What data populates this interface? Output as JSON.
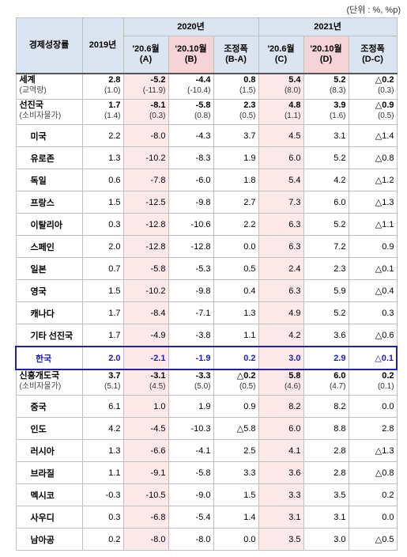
{
  "unit_note": "(단위 : %, %p)",
  "header": {
    "stub": "경제성장률",
    "y2019": "2019년",
    "y2020": "2020년",
    "y2021": "2021년",
    "c_a": [
      "'20.6월",
      "(A)"
    ],
    "c_b": [
      "'20.10월",
      "(B)"
    ],
    "c_ba": [
      "조정폭",
      "(B-A)"
    ],
    "c_c": [
      "'20.6월",
      "(C)"
    ],
    "c_d": [
      "'20.10월",
      "(D)"
    ],
    "c_dc": [
      "조정폭",
      "(D-C)"
    ]
  },
  "groups": [
    {
      "name": "세계",
      "sub": "(교역량)",
      "v": [
        "2.8",
        "-5.2",
        "-4.4",
        "0.8",
        "5.4",
        "5.2",
        "△0.2"
      ],
      "s": [
        "(1.0)",
        "(-11.9)",
        "(-10.4)",
        "(1.5)",
        "(8.0)",
        "(8.3)",
        "(0.3)"
      ]
    },
    {
      "name": "선진국",
      "sub": "(소비자물가)",
      "v": [
        "1.7",
        "-8.1",
        "-5.8",
        "2.3",
        "4.8",
        "3.9",
        "△0.9"
      ],
      "s": [
        "(1.4)",
        "(0.3)",
        "(0.8)",
        "(0.5)",
        "(1.1)",
        "(1.6)",
        "(0.5)"
      ]
    }
  ],
  "advanced": [
    {
      "name": "미국",
      "v": [
        "2.2",
        "-8.0",
        "-4.3",
        "3.7",
        "4.5",
        "3.1",
        "△1.4"
      ]
    },
    {
      "name": "유로존",
      "v": [
        "1.3",
        "-10.2",
        "-8.3",
        "1.9",
        "6.0",
        "5.2",
        "△0.8"
      ]
    },
    {
      "name": "독일",
      "v": [
        "0.6",
        "-7.8",
        "-6.0",
        "1.8",
        "5.4",
        "4.2",
        "△1.2"
      ]
    },
    {
      "name": "프랑스",
      "v": [
        "1.5",
        "-12.5",
        "-9.8",
        "2.7",
        "7.3",
        "6.0",
        "△1.3"
      ]
    },
    {
      "name": "이탈리아",
      "v": [
        "0.3",
        "-12.8",
        "-10.6",
        "2.2",
        "6.3",
        "5.2",
        "△1.1"
      ]
    },
    {
      "name": "스페인",
      "v": [
        "2.0",
        "-12.8",
        "-12.8",
        "0.0",
        "6.3",
        "7.2",
        "0.9"
      ]
    },
    {
      "name": "일본",
      "v": [
        "0.7",
        "-5.8",
        "-5.3",
        "0.5",
        "2.4",
        "2.3",
        "△0.1"
      ]
    },
    {
      "name": "영국",
      "v": [
        "1.5",
        "-10.2",
        "-9.8",
        "0.4",
        "6.3",
        "5.9",
        "△0.4"
      ]
    },
    {
      "name": "캐나다",
      "v": [
        "1.7",
        "-8.4",
        "-7.1",
        "1.3",
        "4.9",
        "5.2",
        "0.3"
      ]
    },
    {
      "name": "기타 선진국",
      "v": [
        "1.7",
        "-4.9",
        "-3.8",
        "1.1",
        "4.2",
        "3.6",
        "△0.6"
      ]
    }
  ],
  "korea": {
    "name": "한국",
    "v": [
      "2.0",
      "-2.1",
      "-1.9",
      "0.2",
      "3.0",
      "2.9",
      "△0.1"
    ]
  },
  "emerging_group": {
    "name": "신흥개도국",
    "sub": "(소비자물가)",
    "v": [
      "3.7",
      "-3.1",
      "-3.3",
      "△0.2",
      "5.8",
      "6.0",
      "0.2"
    ],
    "s": [
      "(5.1)",
      "(4.5)",
      "(5.0)",
      "(0.5)",
      "(4.6)",
      "(4.7)",
      "(0.1)"
    ]
  },
  "emerging": [
    {
      "name": "중국",
      "v": [
        "6.1",
        "1.0",
        "1.9",
        "0.9",
        "8.2",
        "8.2",
        "0.0"
      ]
    },
    {
      "name": "인도",
      "v": [
        "4.2",
        "-4.5",
        "-10.3",
        "△5.8",
        "6.0",
        "8.8",
        "2.8"
      ]
    },
    {
      "name": "러시아",
      "v": [
        "1.3",
        "-6.6",
        "-4.1",
        "2.5",
        "4.1",
        "2.8",
        "△1.3"
      ]
    },
    {
      "name": "브라질",
      "v": [
        "1.1",
        "-9.1",
        "-5.8",
        "3.3",
        "3.6",
        "2.8",
        "△0.8"
      ]
    },
    {
      "name": "멕시코",
      "v": [
        "-0.3",
        "-10.5",
        "-9.0",
        "1.5",
        "3.3",
        "3.5",
        "0.2"
      ]
    },
    {
      "name": "사우디",
      "v": [
        "0.3",
        "-6.8",
        "-5.4",
        "1.4",
        "3.1",
        "3.1",
        "0.0"
      ]
    },
    {
      "name": "남아공",
      "v": [
        "0.2",
        "-8.0",
        "-8.0",
        "0.0",
        "3.5",
        "3.0",
        "△0.5"
      ]
    }
  ]
}
